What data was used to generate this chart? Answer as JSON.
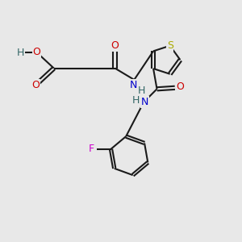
{
  "bg": "#e8e8e8",
  "bc": "#1a1a1a",
  "S_col": "#aaaa00",
  "O_col": "#cc0000",
  "N_col": "#0000cc",
  "F_col": "#cc00cc",
  "H_col": "#336666",
  "lw": 1.5,
  "fs": 9,
  "xlim": [
    0,
    10
  ],
  "ylim": [
    0,
    10
  ],
  "figsize": [
    3.0,
    3.0
  ],
  "dpi": 100
}
